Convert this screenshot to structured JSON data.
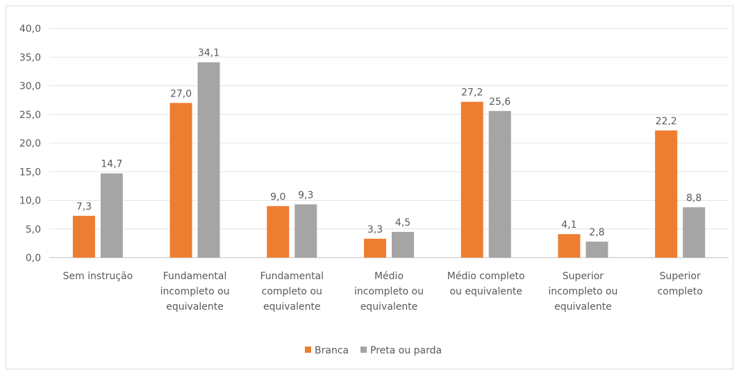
{
  "chart_data": {
    "type": "bar",
    "categories": [
      "Sem instrução",
      "Fundamental incompleto ou equivalente",
      "Fundamental completo ou equivalente",
      "Médio incompleto ou equivalente",
      "Médio completo ou equivalente",
      "Superior incompleto ou equivalente",
      "Superior completo"
    ],
    "category_lines": [
      [
        "Sem instrução"
      ],
      [
        "Fundamental",
        "incompleto ou",
        "equivalente"
      ],
      [
        "Fundamental",
        "completo ou",
        "equivalente"
      ],
      [
        "Médio",
        "incompleto ou",
        "equivalente"
      ],
      [
        "Médio completo",
        "ou equivalente"
      ],
      [
        "Superior",
        "incompleto ou",
        "equivalente"
      ],
      [
        "Superior",
        "completo"
      ]
    ],
    "series": [
      {
        "name": "Branca",
        "color": "#ed7d31",
        "values": [
          7.3,
          27.0,
          9.0,
          3.3,
          27.2,
          4.1,
          22.2
        ],
        "labels": [
          "7,3",
          "27,0",
          "9,0",
          "3,3",
          "27,2",
          "4,1",
          "22,2"
        ]
      },
      {
        "name": "Preta ou parda",
        "color": "#a5a5a5",
        "values": [
          14.7,
          34.1,
          9.3,
          4.5,
          25.6,
          2.8,
          8.8
        ],
        "labels": [
          "14,7",
          "34,1",
          "9,3",
          "4,5",
          "25,6",
          "2,8",
          "8,8"
        ]
      }
    ],
    "ylim": [
      0,
      40
    ],
    "yticks": [
      "0,0",
      "5,0",
      "10,0",
      "15,0",
      "20,0",
      "25,0",
      "30,0",
      "35,0",
      "40,0"
    ],
    "grid": true,
    "legend_position": "bottom"
  }
}
